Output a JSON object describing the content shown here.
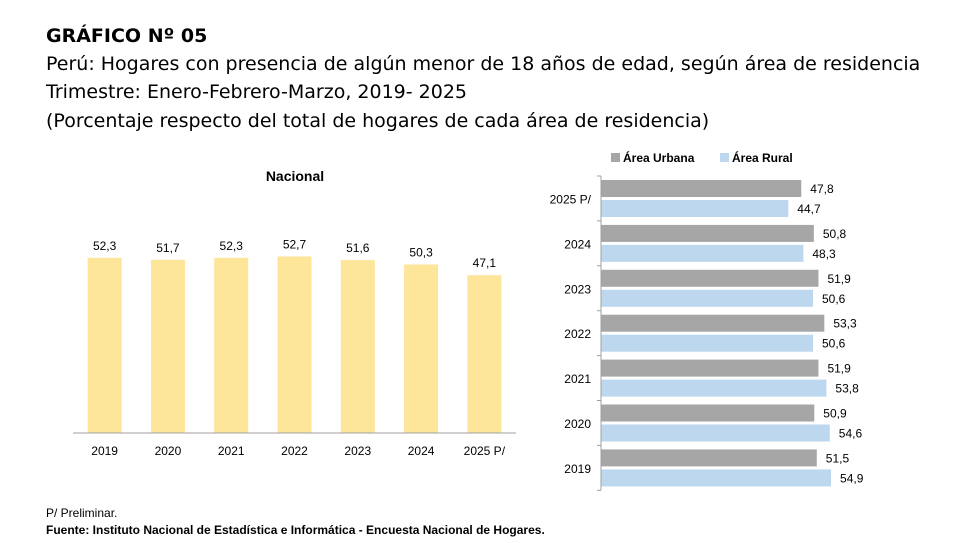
{
  "header": {
    "title": "GRÁFICO Nº 05",
    "subtitle": "Perú: Hogares con presencia de algún menor de 18  años de edad, según área de residencia",
    "period": "Trimestre:  Enero-Febrero-Marzo, 2019- 2025",
    "unit_note": "(Porcentaje respecto del total de hogares de cada área de residencia)"
  },
  "footer": {
    "note": "P/ Preliminar.",
    "source": "Fuente: Instituto Nacional de Estadística e Informática - Encuesta Nacional de Hogares."
  },
  "chart_data": [
    {
      "type": "bar",
      "title": "Nacional",
      "categories": [
        "2019",
        "2020",
        "2021",
        "2022",
        "2023",
        "2024",
        "2025 P/"
      ],
      "values": [
        52.3,
        51.7,
        52.3,
        52.7,
        51.6,
        50.3,
        47.1
      ],
      "value_labels": [
        "52,3",
        "51,7",
        "52,3",
        "52,7",
        "51,6",
        "50,3",
        "47,1"
      ],
      "color": "#FDE59A",
      "grid": false,
      "ylim": [
        0,
        60
      ]
    },
    {
      "type": "bar",
      "orientation": "horizontal",
      "categories": [
        "2025 P/",
        "2024",
        "2023",
        "2022",
        "2021",
        "2020",
        "2019"
      ],
      "legend_position": "top",
      "grid": false,
      "xlim": [
        0,
        60
      ],
      "series": [
        {
          "name": "Área Urbana",
          "color": "#A6A6A6",
          "values": [
            47.8,
            50.8,
            51.9,
            53.3,
            51.9,
            50.9,
            51.5
          ],
          "value_labels": [
            "47,8",
            "50,8",
            "51,9",
            "53,3",
            "51,9",
            "50,9",
            "51,5"
          ]
        },
        {
          "name": "Área Rural",
          "color": "#BDD7EE",
          "values": [
            44.7,
            48.3,
            50.6,
            50.6,
            53.8,
            54.6,
            54.9
          ],
          "value_labels": [
            "44,7",
            "48,3",
            "50,6",
            "50,6",
            "53,8",
            "54,6",
            "54,9"
          ]
        }
      ]
    }
  ]
}
